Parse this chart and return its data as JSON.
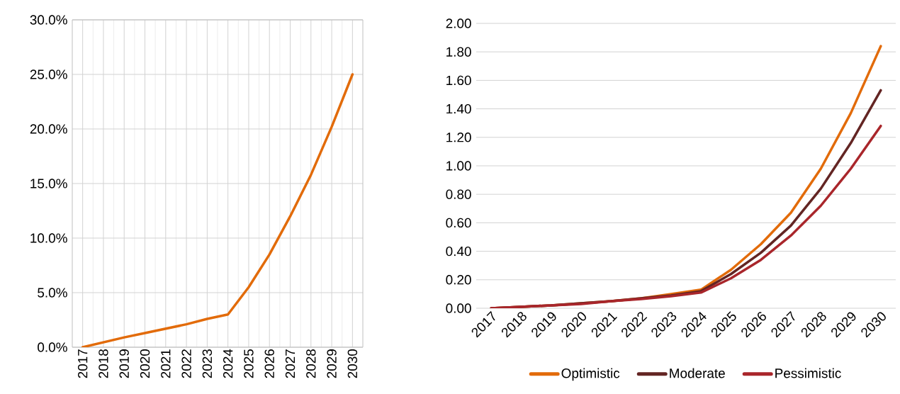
{
  "chart_data": [
    {
      "type": "line",
      "categories": [
        "2017",
        "2018",
        "2019",
        "2020",
        "2021",
        "2022",
        "2023",
        "2024",
        "2025",
        "2026",
        "2027",
        "2028",
        "2029",
        "2030"
      ],
      "series": [
        {
          "color": "#e26b0a",
          "values": [
            0,
            0.45,
            0.9,
            1.3,
            1.7,
            2.1,
            2.6,
            3.0,
            5.5,
            8.5,
            12.0,
            15.8,
            20.2,
            25.0
          ]
        }
      ],
      "ylim": [
        0,
        30
      ],
      "yticks": [
        {
          "value": 0,
          "label": "0.0%"
        },
        {
          "value": 5,
          "label": "5.0%"
        },
        {
          "value": 10,
          "label": "10.0%"
        },
        {
          "value": 15,
          "label": "15.0%"
        },
        {
          "value": 20,
          "label": "20.0%"
        },
        {
          "value": 25,
          "label": "25.0%"
        },
        {
          "value": 30,
          "label": "30.0%"
        }
      ],
      "grid": true
    },
    {
      "type": "line",
      "categories": [
        "2017",
        "2018",
        "2019",
        "2020",
        "2021",
        "2022",
        "2023",
        "2024",
        "2025",
        "2026",
        "2027",
        "2028",
        "2029",
        "2030"
      ],
      "series": [
        {
          "name": "Optimistic",
          "color": "#e26b0a",
          "values": [
            0,
            0.01,
            0.02,
            0.035,
            0.05,
            0.07,
            0.1,
            0.13,
            0.27,
            0.45,
            0.67,
            0.98,
            1.37,
            1.84
          ]
        },
        {
          "name": "Moderate",
          "color": "#632523",
          "values": [
            0,
            0.01,
            0.02,
            0.035,
            0.05,
            0.07,
            0.09,
            0.12,
            0.24,
            0.39,
            0.58,
            0.84,
            1.16,
            1.53
          ]
        },
        {
          "name": "Pessimistic",
          "color": "#a9262b",
          "values": [
            0,
            0.01,
            0.02,
            0.03,
            0.05,
            0.065,
            0.085,
            0.11,
            0.21,
            0.34,
            0.51,
            0.72,
            0.98,
            1.28
          ]
        }
      ],
      "ylim": [
        0,
        2
      ],
      "yticks": [
        {
          "value": 0,
          "label": "0.00"
        },
        {
          "value": 0.2,
          "label": "0.20"
        },
        {
          "value": 0.4,
          "label": "0.40"
        },
        {
          "value": 0.6,
          "label": "0.60"
        },
        {
          "value": 0.8,
          "label": "0.80"
        },
        {
          "value": 1.0,
          "label": "1.00"
        },
        {
          "value": 1.2,
          "label": "1.20"
        },
        {
          "value": 1.4,
          "label": "1.40"
        },
        {
          "value": 1.6,
          "label": "1.60"
        },
        {
          "value": 1.8,
          "label": "1.80"
        },
        {
          "value": 2.0,
          "label": "2.00"
        }
      ],
      "grid": "y",
      "legend": "bottom"
    }
  ]
}
